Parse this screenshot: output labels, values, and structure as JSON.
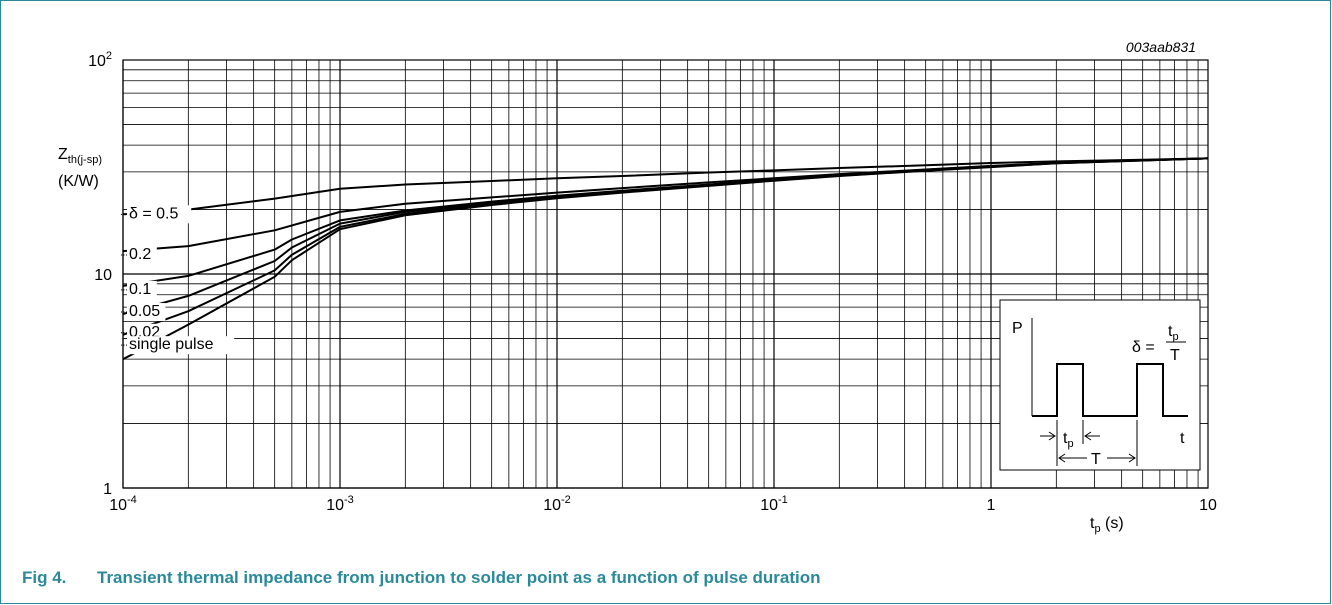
{
  "figure": {
    "number": "Fig 4.",
    "caption": "Transient thermal impedance from junction to solder point as a function of pulse duration",
    "code": "003aab831"
  },
  "colors": {
    "caption": "#2b8a9a",
    "frame": "#2b8a9a",
    "curve": "#000000",
    "grid": "#000000"
  },
  "chart_data": {
    "type": "line",
    "x_scale": "log",
    "y_scale": "log",
    "xlim": [
      0.0001,
      10
    ],
    "ylim": [
      1,
      100
    ],
    "grid": true,
    "xlabel": {
      "main": "t",
      "sub": "p",
      "unit": " (s)"
    },
    "ylabel": {
      "main": "Z",
      "sub": "th(j-sp)",
      "unit": "(K/W)"
    },
    "x_ticks": [
      {
        "value": 0.0001,
        "base": "10",
        "exp": "-4"
      },
      {
        "value": 0.001,
        "base": "10",
        "exp": "-3"
      },
      {
        "value": 0.01,
        "base": "10",
        "exp": "-2"
      },
      {
        "value": 0.1,
        "base": "10",
        "exp": "-1"
      },
      {
        "value": 1,
        "base": "1",
        "exp": ""
      },
      {
        "value": 10,
        "base": "10",
        "exp": ""
      }
    ],
    "y_ticks": [
      {
        "value": 1,
        "base": "1",
        "exp": ""
      },
      {
        "value": 10,
        "base": "10",
        "exp": ""
      },
      {
        "value": 100,
        "base": "10",
        "exp": "2"
      }
    ],
    "series": [
      {
        "name": "δ = 0.5",
        "x": [
          0.0001,
          0.0002,
          0.0005,
          0.001,
          0.002,
          0.005,
          0.01,
          0.02,
          0.05,
          0.1,
          0.2,
          0.5,
          1,
          2,
          5,
          10
        ],
        "y": [
          19.0,
          20.0,
          22.5,
          25.0,
          26.2,
          27.2,
          28.0,
          28.7,
          29.8,
          30.5,
          31.3,
          32.2,
          33.0,
          33.6,
          34.2,
          34.7
        ]
      },
      {
        "name": "0.2",
        "x": [
          0.0001,
          0.0002,
          0.0005,
          0.001,
          0.002,
          0.005,
          0.01,
          0.02,
          0.05,
          0.1,
          0.2,
          0.5,
          1,
          2,
          5,
          10
        ],
        "y": [
          12.8,
          13.5,
          16.0,
          19.5,
          21.3,
          22.8,
          24.0,
          25.2,
          26.8,
          28.0,
          29.3,
          30.8,
          32.0,
          33.0,
          34.0,
          34.7
        ]
      },
      {
        "name": "0.1",
        "x": [
          0.0001,
          0.0002,
          0.0005,
          0.0006,
          0.001,
          0.002,
          0.005,
          0.01,
          0.02,
          0.05,
          0.1,
          0.2,
          0.5,
          1,
          2,
          5,
          10
        ],
        "y": [
          8.8,
          9.8,
          13.0,
          14.5,
          17.8,
          19.8,
          21.8,
          23.2,
          24.5,
          26.2,
          27.6,
          29.0,
          30.7,
          31.9,
          33.0,
          34.0,
          34.7
        ]
      },
      {
        "name": "0.05",
        "x": [
          0.0001,
          0.0002,
          0.0005,
          0.0006,
          0.001,
          0.002,
          0.005,
          0.01,
          0.02,
          0.05,
          0.1,
          0.2,
          0.5,
          1,
          2,
          5,
          10
        ],
        "y": [
          6.5,
          7.9,
          11.5,
          13.3,
          17.2,
          19.5,
          21.5,
          23.0,
          24.4,
          26.0,
          27.5,
          28.9,
          30.6,
          31.8,
          33.0,
          34.0,
          34.7
        ]
      },
      {
        "name": "0.02",
        "x": [
          0.0001,
          0.0002,
          0.0005,
          0.0006,
          0.001,
          0.002,
          0.005,
          0.01,
          0.02,
          0.05,
          0.1,
          0.2,
          0.5,
          1,
          2,
          5,
          10
        ],
        "y": [
          5.2,
          6.7,
          10.4,
          12.3,
          16.6,
          19.1,
          21.2,
          22.8,
          24.2,
          25.9,
          27.4,
          28.8,
          30.5,
          31.7,
          32.9,
          33.9,
          34.7
        ]
      },
      {
        "name": "single pulse",
        "x": [
          0.0001,
          0.0002,
          0.0005,
          0.0006,
          0.001,
          0.002,
          0.005,
          0.01,
          0.02,
          0.05,
          0.1,
          0.2,
          0.5,
          1,
          2,
          5,
          10
        ],
        "y": [
          4.0,
          5.8,
          9.7,
          11.6,
          16.2,
          18.8,
          21.0,
          22.6,
          24.0,
          25.8,
          27.3,
          28.7,
          30.4,
          31.6,
          32.9,
          33.9,
          34.7
        ]
      }
    ],
    "inset": {
      "p_label": "P",
      "t_label": "t",
      "tp_label": {
        "main": "t",
        "sub": "p"
      },
      "T_label": "T",
      "delta_prefix": "δ =",
      "delta_num": {
        "main": "t",
        "sub": "p"
      },
      "delta_den": "T"
    }
  }
}
